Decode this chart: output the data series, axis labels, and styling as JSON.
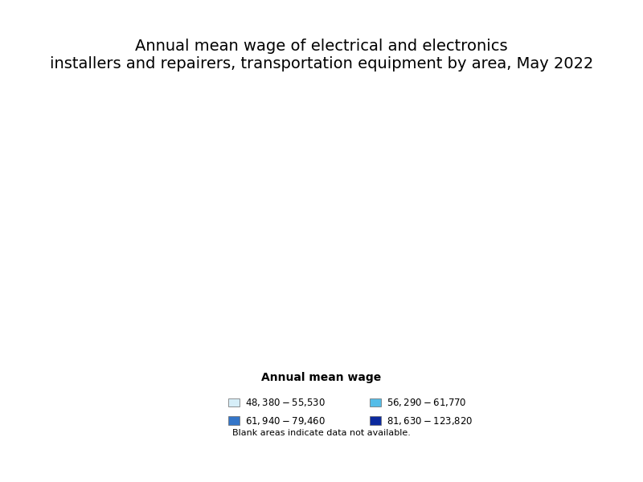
{
  "title_line1": "Annual mean wage of electrical and electronics",
  "title_line2": "installers and repairers, transportation equipment by area, May 2022",
  "title_fontsize": 14,
  "legend_title": "Annual mean wage",
  "legend_title_fontsize": 10,
  "legend_label_fontsize": 8.5,
  "blank_note": "Blank areas indicate data not available.",
  "blank_note_fontsize": 8,
  "legend_items": [
    {
      "label": "$48,380 - $55,530",
      "color": "#d6eef8"
    },
    {
      "label": "$56,290 - $61,770",
      "color": "#55bde8"
    },
    {
      "label": "$61,940 - $79,460",
      "color": "#3375c8"
    },
    {
      "label": "$81,630 - $123,820",
      "color": "#0c2a9e"
    }
  ],
  "background_color": "#ffffff",
  "state_edge_color": "#333333",
  "county_edge_color": "#888888",
  "county_edge_width": 0.25,
  "state_edge_width": 0.65,
  "no_data_color": "#ffffff",
  "fips_colors": {
    "53029": "#0c2a9e",
    "53031": "#0c2a9e",
    "53033": "#0c2a9e",
    "53035": "#0c2a9e",
    "53053": "#0c2a9e",
    "53057": "#3375c8",
    "53061": "#0c2a9e",
    "53073": "#0c2a9e",
    "16055": "#55bde8",
    "04021": "#55bde8",
    "06037": "#d6eef8",
    "06073": "#d6eef8",
    "06083": "#d6eef8",
    "06085": "#d6eef8",
    "06111": "#d6eef8",
    "06059": "#0c2a9e",
    "08035": "#3375c8",
    "27137": "#55bde8",
    "27053": "#55bde8",
    "17031": "#55bde8",
    "17089": "#3375c8",
    "39153": "#3375c8",
    "47157": "#55bde8",
    "47093": "#55bde8",
    "12086": "#d6eef8",
    "12011": "#55bde8",
    "12009": "#d6eef8",
    "12057": "#d6eef8",
    "25017": "#3375c8",
    "25021": "#3375c8",
    "25025": "#3375c8",
    "34013": "#0c2a9e",
    "34017": "#0c2a9e",
    "34023": "#3375c8",
    "34039": "#3375c8",
    "36005": "#0c2a9e",
    "36047": "#0c2a9e",
    "36059": "#3375c8",
    "36081": "#0c2a9e",
    "36085": "#0c2a9e",
    "36103": "#3375c8",
    "24033": "#3375c8",
    "51059": "#3375c8",
    "51013": "#3375c8",
    "51107": "#3375c8",
    "45019": "#d6eef8",
    "13121": "#3375c8",
    "01073": "#55bde8",
    "01089": "#55bde8",
    "28049": "#3375c8",
    "22017": "#3375c8",
    "48201": "#3375c8",
    "48113": "#3375c8",
    "40143": "#3375c8",
    "40109": "#55bde8",
    "35001": "#55bde8",
    "04013": "#55bde8",
    "02020": "#55bde8",
    "02170": "#55bde8",
    "15003": "#55bde8",
    "09003": "#3375c8",
    "33011": "#d6eef8",
    "23005": "#d6eef8"
  }
}
